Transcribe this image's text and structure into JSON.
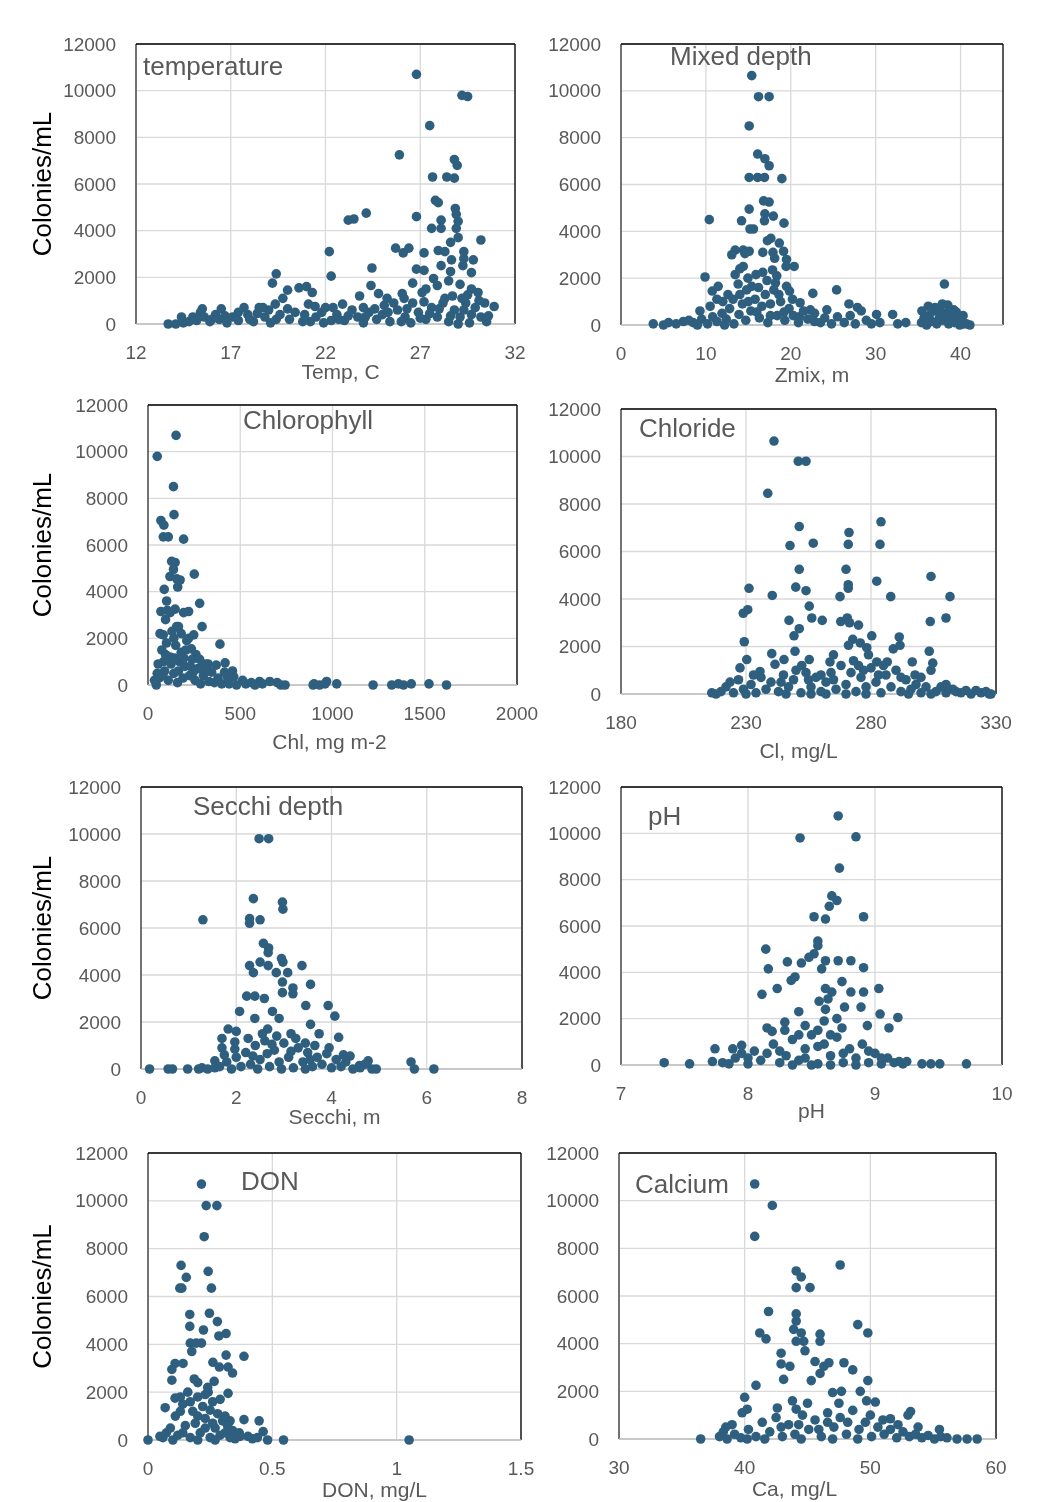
{
  "chart_data": [
    {
      "type": "scatter",
      "title": "temperature",
      "xlabel": "Temp, C",
      "ylabel": "Colonies/mL",
      "color": "#2f5f7f",
      "marker": "circle",
      "xlim": [
        12,
        32
      ],
      "xticks": [
        12,
        17,
        22,
        27,
        32
      ],
      "ylim": [
        0,
        12000
      ],
      "yticks": [
        0,
        2000,
        4000,
        6000,
        8000,
        10000,
        12000
      ],
      "grid": true,
      "x": [
        26.8,
        29.2,
        29.5,
        27.5,
        25.9,
        28.8,
        28.95,
        27.65,
        28.4,
        28.8,
        27.8,
        27.95,
        28.85,
        28.9,
        29.0,
        28.9,
        26.8,
        28.1,
        27.6,
        28.1,
        29.0,
        30.2,
        23.2,
        23.5,
        24.15,
        22.2,
        22.3,
        25.7,
        26.1,
        26.4,
        27.2,
        27.95,
        28.3,
        28.6,
        29.3,
        29.3,
        29.8,
        29.25,
        28.65,
        28.1,
        26.8,
        27.2,
        26.6,
        27.7,
        28.6,
        28.5,
        27.9,
        29.7,
        29.1,
        24.45,
        24.4,
        23.8,
        24.8,
        19.4,
        19.2,
        20.0,
        20.6,
        21.0,
        21.3,
        19.75,
        19.35,
        27.1,
        27.3,
        26.05,
        26.15,
        25.25,
        30.9,
        30.6,
        30.05,
        29.7,
        21.1,
        21.45,
        22.0,
        22.4,
        22.9,
        17.7,
        18.5,
        18.7,
        15.5,
        16.5,
        13.7,
        14.1,
        14.5,
        14.8,
        15.2,
        15.4,
        15.6,
        15.9,
        16.2,
        16.4,
        16.8,
        17.1,
        17.4,
        17.9,
        18.2,
        18.8,
        19.1,
        19.6,
        20.1,
        20.4,
        20.8,
        21.5,
        21.9,
        22.6,
        23.0,
        23.4,
        23.7,
        24.0,
        24.3,
        24.7,
        25.0,
        25.4,
        25.8,
        26.2,
        26.5,
        26.9,
        27.3,
        27.6,
        27.9,
        28.2,
        28.5,
        28.8,
        29.1,
        29.4,
        29.6,
        29.9,
        30.2,
        30.5,
        30.4,
        29.2,
        28.3,
        26.6,
        25.6,
        24.0,
        25.1,
        22.7,
        21.2,
        20.9,
        18.0,
        16.0,
        15.0,
        17.4,
        19.0,
        20.0,
        21.8,
        23.2,
        24.6,
        25.3,
        26.0,
        26.3,
        27.0,
        27.5,
        28.0,
        28.6,
        29.0,
        29.3,
        29.7,
        30.1,
        27.2,
        28.7,
        29.5,
        14.4,
        16.7,
        18.4,
        19.4,
        22.3,
        24.1
      ],
      "values": [
        10700,
        9800,
        9750,
        8500,
        7250,
        7050,
        6800,
        6300,
        6300,
        6250,
        5300,
        5200,
        4950,
        4700,
        4400,
        4100,
        4600,
        4450,
        4100,
        4100,
        3700,
        3600,
        4450,
        4500,
        4750,
        3100,
        2050,
        3250,
        3050,
        3250,
        3050,
        3150,
        3100,
        3500,
        3100,
        2800,
        2750,
        2500,
        2750,
        2500,
        2350,
        2300,
        1750,
        1950,
        2250,
        1850,
        1650,
        2200,
        1700,
        2400,
        1650,
        1200,
        1300,
        2150,
        1750,
        1450,
        1550,
        1600,
        1350,
        1100,
        850,
        1350,
        1500,
        1300,
        1100,
        1100,
        750,
        350,
        1350,
        1500,
        850,
        750,
        700,
        700,
        850,
        700,
        700,
        700,
        650,
        650,
        0,
        0,
        50,
        100,
        150,
        500,
        300,
        100,
        400,
        200,
        50,
        300,
        150,
        400,
        100,
        300,
        50,
        400,
        200,
        500,
        100,
        300,
        50,
        400,
        150,
        600,
        300,
        50,
        500,
        200,
        400,
        100,
        600,
        300,
        50,
        500,
        200,
        700,
        300,
        900,
        100,
        600,
        300,
        900,
        50,
        700,
        300,
        100,
        900,
        1100,
        1100,
        900,
        900,
        700,
        800,
        200,
        100,
        400,
        200,
        200,
        300,
        500,
        600,
        650,
        500,
        350,
        650,
        500,
        100,
        650,
        250,
        450,
        650,
        350,
        0,
        600,
        400,
        1000,
        950,
        1200,
        1250,
        300,
        350,
        450,
        200,
        150,
        300
      ]
    },
    {
      "type": "scatter",
      "title": "Mixed depth",
      "xlabel": "Zmix, m",
      "color": "#2f5f7f",
      "marker": "circle",
      "xlim": [
        0,
        45
      ],
      "xticks": [
        0,
        10,
        20,
        30,
        40
      ],
      "ylim": [
        0,
        12000
      ],
      "yticks": [
        0,
        2000,
        4000,
        6000,
        8000,
        10000,
        12000
      ],
      "grid": true,
      "x": [
        15.4,
        16.2,
        17.45,
        15.1,
        16.1,
        16.95,
        17.45,
        15.1,
        16.1,
        16.9,
        18.95,
        16.8,
        17.45,
        15.1,
        10.4,
        14.2,
        16.95,
        16.9,
        17.95,
        19.2,
        15.2,
        15.6,
        17.25,
        17.65,
        18.65,
        13.05,
        13.45,
        14.4,
        14.6,
        15.1,
        16.7,
        17.9,
        19.15,
        18.1,
        19.5,
        19.45,
        20.4,
        13.45,
        14.0,
        14.4,
        9.9,
        10.75,
        11.45,
        14.95,
        15.9,
        16.7,
        17.85,
        18.35,
        13.8,
        15.4,
        19.5,
        19.85,
        22.6,
        25.4,
        26.85,
        24.25,
        27.85,
        38.1,
        37.85,
        32.0,
        30.1,
        35.45,
        37.0,
        39.2,
        39.5,
        32.6,
        33.55,
        41.1,
        40.35,
        3.8,
        5.0,
        5.6,
        7.35,
        21.1,
        22.3,
        12.0,
        13.2,
        8.5,
        9.5,
        10.2,
        10.8,
        11.3,
        11.9,
        12.4,
        12.8,
        13.3,
        13.9,
        14.3,
        14.7,
        15.3,
        15.8,
        16.3,
        16.6,
        17.0,
        17.3,
        17.6,
        18.0,
        18.4,
        18.8,
        19.3,
        19.8,
        20.3,
        20.9,
        21.5,
        22.0,
        22.8,
        23.5,
        24.0,
        24.8,
        25.5,
        26.3,
        27.0,
        27.6,
        28.3,
        28.9,
        29.5,
        30.5,
        35.4,
        35.7,
        36.0,
        36.3,
        36.6,
        36.9,
        37.2,
        37.5,
        37.9,
        38.3,
        38.6,
        38.9,
        39.3,
        39.8,
        39.9,
        40.7,
        6.5,
        8.0,
        9.0,
        17.2,
        18.2,
        16.2,
        12.6,
        14.0,
        14.8,
        15.0,
        16.0,
        17.6,
        18.6,
        19.2,
        20.2,
        21.0,
        22.8,
        12.2,
        9.3,
        10.5,
        11.3,
        36.2,
        37.6,
        38.5,
        40.3
      ],
      "values": [
        10650,
        9750,
        9750,
        8500,
        7300,
        7100,
        6800,
        6300,
        6300,
        6300,
        6250,
        5300,
        5250,
        4950,
        4500,
        4450,
        4750,
        4450,
        4650,
        4350,
        4100,
        4100,
        3600,
        3700,
        3500,
        3000,
        3200,
        3200,
        3050,
        3150,
        3100,
        3100,
        3150,
        2850,
        2800,
        2500,
        2500,
        2150,
        2400,
        2500,
        2050,
        1450,
        1650,
        2000,
        2150,
        2250,
        2350,
        2100,
        1750,
        1650,
        1650,
        1450,
        1350,
        1500,
        900,
        650,
        750,
        1750,
        900,
        450,
        450,
        600,
        750,
        650,
        550,
        50,
        100,
        0,
        50,
        50,
        0,
        100,
        150,
        950,
        650,
        1000,
        1100,
        100,
        250,
        50,
        350,
        150,
        500,
        250,
        700,
        50,
        450,
        900,
        200,
        600,
        1100,
        300,
        800,
        1300,
        100,
        900,
        1500,
        400,
        1000,
        200,
        700,
        400,
        100,
        600,
        250,
        500,
        100,
        300,
        50,
        350,
        100,
        400,
        50,
        600,
        200,
        50,
        100,
        100,
        300,
        0,
        400,
        150,
        600,
        50,
        300,
        200,
        500,
        50,
        300,
        100,
        250,
        0,
        50,
        50,
        200,
        0,
        1900,
        1800,
        1600,
        1300,
        1300,
        1500,
        1000,
        550,
        400,
        1300,
        550,
        1100,
        350,
        150,
        0,
        600,
        800,
        1100,
        800,
        600,
        850,
        400
      ]
    },
    {
      "type": "scatter",
      "title": "Chlorophyll",
      "xlabel": "Chl, mg m-2",
      "ylabel": "Colonies/mL",
      "color": "#2f5f7f",
      "marker": "circle",
      "xlim": [
        0,
        2000
      ],
      "xticks": [
        0,
        500,
        1000,
        1500,
        2000
      ],
      "ylim": [
        0,
        12000
      ],
      "yticks": [
        0,
        2000,
        4000,
        6000,
        8000,
        10000,
        12000
      ],
      "grid": true,
      "x": [
        152,
        50,
        138,
        141,
        70,
        86,
        83,
        110,
        193,
        128,
        147,
        138,
        119,
        156,
        174,
        161,
        251,
        88,
        101,
        70,
        105,
        147,
        193,
        220,
        280,
        95,
        165,
        293,
        83,
        248,
        220,
        235,
        390,
        418,
        326,
        55,
        431,
        513,
        605,
        660,
        743,
        895,
        968,
        1023,
        1220,
        1321,
        1357,
        1385,
        1427,
        1523,
        1618,
        45,
        60,
        75,
        90,
        100,
        110,
        120,
        130,
        140,
        150,
        160,
        170,
        180,
        190,
        200,
        210,
        225,
        240,
        255,
        270,
        285,
        300,
        315,
        330,
        345,
        360,
        380,
        400,
        415,
        440,
        458,
        480,
        530,
        560,
        580,
        620,
        700,
        720,
        900,
        930,
        960,
        65,
        95,
        125,
        155,
        180,
        205,
        230,
        120,
        140,
        80,
        300,
        260,
        85,
        50,
        165,
        145,
        195,
        245,
        280,
        320,
        370,
        465,
        35
      ],
      "values": [
        10700,
        9800,
        8500,
        7300,
        7050,
        6850,
        6350,
        6350,
        6250,
        5300,
        5250,
        4950,
        4650,
        4550,
        4500,
        4200,
        4750,
        4100,
        3600,
        3150,
        3200,
        3250,
        3100,
        3150,
        3500,
        2800,
        2500,
        2500,
        2150,
        2150,
        2000,
        1550,
        1750,
        950,
        900,
        900,
        350,
        200,
        150,
        150,
        0,
        0,
        150,
        50,
        0,
        0,
        50,
        0,
        50,
        50,
        0,
        0,
        300,
        1500,
        600,
        1800,
        200,
        1200,
        2300,
        500,
        1700,
        100,
        1000,
        1400,
        300,
        800,
        1900,
        400,
        1100,
        200,
        700,
        50,
        400,
        900,
        150,
        550,
        100,
        300,
        50,
        550,
        50,
        600,
        0,
        50,
        100,
        0,
        50,
        100,
        0,
        50,
        0,
        50,
        2200,
        1300,
        900,
        2500,
        2200,
        1500,
        800,
        3100,
        2000,
        400,
        800,
        1300,
        1000,
        500,
        600,
        1150,
        1150,
        550,
        1100,
        600,
        850,
        350,
        200
      ]
    },
    {
      "type": "scatter",
      "title": "Chloride",
      "xlabel": "Cl, mg/L",
      "color": "#2f5f7f",
      "marker": "circle",
      "xlim": [
        180,
        330
      ],
      "xticks": [
        180,
        230,
        280,
        330
      ],
      "ylim": [
        0,
        12000
      ],
      "yticks": [
        0,
        2000,
        4000,
        6000,
        8000,
        10000,
        12000
      ],
      "grid": true,
      "x": [
        241.2,
        250.9,
        254,
        238.7,
        251.3,
        247.6,
        256.9,
        251.3,
        249.9,
        254,
        231.2,
        240.5,
        228.9,
        230.7,
        255.3,
        247.2,
        256.3,
        260.5,
        251.3,
        249.2,
        229.3,
        249.6,
        240.3,
        245.2,
        255.3,
        252.3,
        230.3,
        227.6,
        235.6,
        241.6,
        271.2,
        270.9,
        284,
        283.6,
        270,
        270.9,
        270.9,
        267.6,
        282.3,
        287.9,
        304,
        311.6,
        310,
        303.7,
        267.9,
        270.5,
        271.4,
        275,
        280.3,
        272.7,
        275.7,
        271,
        278.3,
        279,
        288.9,
        291.3,
        291.6,
        303.3,
        304.7,
        304,
        296.5,
        263.6,
        265,
        282.3,
        286.5,
        297.6,
        312.7,
        322,
        327.3,
        216.3,
        223.6,
        218,
        220,
        222,
        225,
        227,
        229,
        232,
        234,
        236,
        238,
        240,
        243,
        245,
        247,
        249,
        252,
        254,
        256,
        258,
        260,
        262,
        264,
        266,
        268,
        270,
        272,
        274,
        276,
        278,
        280,
        282,
        284,
        286,
        288,
        290,
        292,
        294,
        296,
        298,
        300,
        302,
        306,
        308,
        310,
        314,
        316,
        318,
        320,
        324,
        326,
        328,
        260,
        273,
        277,
        285,
        250,
        230,
        246,
        262,
        270,
        278,
        295,
        304,
        256,
        265,
        283,
        292,
        275,
        244,
        233,
        300,
        310,
        255
      ],
      "values": [
        10650,
        9800,
        9800,
        8450,
        7050,
        6250,
        6350,
        5250,
        4500,
        4350,
        4450,
        4150,
        3400,
        3550,
        3700,
        3100,
        3200,
        3100,
        2750,
        2450,
        2200,
        1800,
        1700,
        1450,
        1450,
        1200,
        1450,
        1100,
        950,
        1250,
        6800,
        6300,
        7250,
        6300,
        5250,
        4600,
        4450,
        4100,
        4750,
        4100,
        4950,
        4100,
        3200,
        3050,
        3050,
        3200,
        3000,
        2900,
        2450,
        2300,
        2150,
        2050,
        1950,
        1650,
        1900,
        2400,
        2050,
        1800,
        1300,
        1000,
        1350,
        1350,
        1650,
        1350,
        1350,
        800,
        200,
        150,
        0,
        50,
        500,
        0,
        100,
        300,
        50,
        600,
        200,
        400,
        50,
        700,
        200,
        500,
        100,
        800,
        300,
        600,
        50,
        900,
        300,
        700,
        100,
        500,
        900,
        200,
        1200,
        400,
        900,
        100,
        700,
        300,
        1100,
        500,
        50,
        800,
        300,
        1000,
        100,
        600,
        200,
        400,
        50,
        300,
        100,
        300,
        50,
        100,
        50,
        150,
        0,
        50,
        100,
        0,
        800,
        1400,
        1000,
        1200,
        1000,
        0,
        0,
        0,
        0,
        0,
        0,
        0,
        0,
        600,
        800,
        700,
        1200,
        500,
        800,
        700,
        400,
        600
      ]
    },
    {
      "type": "scatter",
      "title": "Secchi depth",
      "xlabel": "Secchi, m",
      "ylabel": "Colonies/mL",
      "color": "#2f5f7f",
      "marker": "circle",
      "xlim": [
        0,
        8
      ],
      "xticks": [
        0,
        2,
        4,
        6,
        8
      ],
      "ylim": [
        0,
        12000
      ],
      "yticks": [
        0,
        2000,
        4000,
        6000,
        8000,
        10000,
        12000
      ],
      "grid": true,
      "x": [
        2.48,
        2.68,
        2.36,
        2.97,
        2.98,
        1.3,
        2.28,
        2.28,
        2.5,
        2.57,
        2.68,
        2.67,
        2.95,
        2.98,
        2.28,
        2.5,
        2.67,
        2.36,
        2.84,
        3.08,
        3.38,
        2.97,
        3.19,
        3.19,
        2.97,
        3.56,
        2.22,
        2.39,
        2.59,
        3.46,
        3.93,
        4.07,
        2.07,
        2.76,
        2.9,
        3.56,
        3.74,
        4.15,
        1.83,
        2.0,
        1.7,
        1.7,
        1.97,
        1.97,
        2.39,
        2.66,
        3.15,
        5.67,
        5.74,
        6.15,
        0.18,
        0.57,
        0.66,
        0.98,
        1.21,
        1.28,
        4.77,
        4.94,
        4.59,
        4.39,
        1.4,
        1.55,
        1.65,
        1.8,
        1.9,
        2.0,
        2.1,
        2.2,
        2.3,
        2.4,
        2.5,
        2.6,
        2.7,
        2.8,
        2.9,
        3.0,
        3.1,
        3.2,
        3.3,
        3.4,
        3.5,
        3.6,
        3.7,
        3.8,
        3.9,
        4.0,
        4.1,
        4.2,
        4.3,
        4.45,
        4.6,
        4.7,
        4.85,
        2.55,
        2.85,
        3.25,
        3.65,
        2.25,
        2.45,
        2.95,
        3.45,
        2.65,
        3.15,
        3.55,
        2.35,
        2.75,
        3.45,
        3.95,
        4.25,
        1.75,
        1.55
      ],
      "values": [
        9800,
        9800,
        7250,
        7100,
        6800,
        6350,
        6400,
        6200,
        6350,
        5350,
        5150,
        4950,
        4700,
        4550,
        4400,
        4550,
        4400,
        4100,
        4100,
        4100,
        4400,
        3700,
        3450,
        3200,
        3250,
        3600,
        3100,
        3100,
        3000,
        2700,
        2700,
        2250,
        2450,
        2450,
        2150,
        1900,
        1500,
        1350,
        1700,
        1600,
        1300,
        900,
        1150,
        850,
        2150,
        1700,
        1500,
        300,
        0,
        0,
        0,
        0,
        0,
        0,
        0,
        50,
        350,
        0,
        150,
        550,
        0,
        50,
        100,
        300,
        0,
        500,
        100,
        700,
        200,
        1000,
        400,
        1200,
        100,
        800,
        300,
        1100,
        500,
        50,
        900,
        300,
        700,
        100,
        500,
        200,
        650,
        50,
        400,
        100,
        300,
        0,
        50,
        200,
        0,
        1500,
        1400,
        1300,
        1000,
        1300,
        0,
        0,
        0,
        650,
        750,
        400,
        550,
        1050,
        1100,
        900,
        600,
        600,
        350
      ]
    },
    {
      "type": "scatter",
      "title": "pH",
      "xlabel": "pH",
      "color": "#2f5f7f",
      "marker": "circle",
      "xlim": [
        7,
        10
      ],
      "xticks": [
        7,
        8,
        9,
        10
      ],
      "ylim": [
        0,
        12000
      ],
      "yticks": [
        0,
        2000,
        4000,
        6000,
        8000,
        10000,
        12000
      ],
      "grid": true,
      "x": [
        8.71,
        8.41,
        8.85,
        8.72,
        8.66,
        8.7,
        8.64,
        8.52,
        8.61,
        8.91,
        8.55,
        8.55,
        8.14,
        8.52,
        8.48,
        8.42,
        8.31,
        8.16,
        8.61,
        8.71,
        8.81,
        8.58,
        8.91,
        8.34,
        8.37,
        8.23,
        8.11,
        8.61,
        8.66,
        8.74,
        8.81,
        8.91,
        9.03,
        8.56,
        8.63,
        8.89,
        8.76,
        9.04,
        9.18,
        9.11,
        8.94,
        8.4,
        8.61,
        8.29,
        8.15,
        8.19,
        8.29,
        8.74,
        7.74,
        7.88,
        7.95,
        7.34,
        7.54,
        9.19,
        9.37,
        9.44,
        9.51,
        9.72,
        7.72,
        7.8,
        7.9,
        8.0,
        8.05,
        8.1,
        8.2,
        8.25,
        8.3,
        8.35,
        8.4,
        8.45,
        8.5,
        8.55,
        8.6,
        8.65,
        8.7,
        8.75,
        8.8,
        8.85,
        8.9,
        8.95,
        9.0,
        9.05,
        9.1,
        9.15,
        9.22,
        9.25,
        8.45,
        8.6,
        8.7,
        8.55,
        8.0,
        7.85,
        8.15,
        8.35,
        8.45,
        8.5,
        8.55,
        8.65,
        8.75,
        8.85,
        8.65,
        8.4,
        8.25,
        9.05,
        8.95,
        7.95
      ],
      "values": [
        10750,
        9800,
        9850,
        8500,
        7300,
        7100,
        6850,
        6400,
        6300,
        6400,
        5350,
        5150,
        5000,
        4800,
        4650,
        4400,
        4450,
        4150,
        4500,
        4500,
        4500,
        4150,
        4200,
        3650,
        3800,
        3300,
        3050,
        3300,
        3150,
        3600,
        3150,
        3150,
        3300,
        2750,
        2850,
        2500,
        2500,
        2200,
        2050,
        1600,
        1700,
        2300,
        2400,
        1850,
        1600,
        1450,
        1500,
        1600,
        700,
        700,
        850,
        100,
        50,
        150,
        50,
        50,
        50,
        50,
        150,
        100,
        300,
        50,
        600,
        200,
        900,
        100,
        400,
        1100,
        200,
        700,
        1300,
        50,
        900,
        400,
        1200,
        100,
        700,
        300,
        900,
        100,
        500,
        50,
        300,
        100,
        50,
        150,
        1700,
        1900,
        2000,
        1500,
        300,
        50,
        500,
        0,
        300,
        0,
        800,
        0,
        500,
        0,
        1300,
        1300,
        600,
        300,
        600,
        500
      ]
    },
    {
      "type": "scatter",
      "title": "DON",
      "xlabel": "DON, mg/L",
      "ylabel": "Colonies/mL",
      "color": "#2f5f7f",
      "marker": "circle",
      "xlim": [
        0,
        1.5
      ],
      "xticks": [
        0,
        0.5,
        1,
        1.5
      ],
      "ylim": [
        0,
        12000
      ],
      "yticks": [
        0,
        2000,
        4000,
        6000,
        8000,
        10000,
        12000
      ],
      "grid": true,
      "x": [
        0.215,
        0.234,
        0.277,
        0.226,
        0.133,
        0.154,
        0.128,
        0.136,
        0.242,
        0.255,
        0.168,
        0.247,
        0.168,
        0.279,
        0.314,
        0.285,
        0.223,
        0.17,
        0.194,
        0.215,
        0.176,
        0.314,
        0.386,
        0.109,
        0.141,
        0.096,
        0.261,
        0.287,
        0.322,
        0.34,
        0.186,
        0.096,
        0.322,
        0.069,
        0.266,
        0.109,
        0.242,
        0.386,
        0.447,
        0.463,
        0,
        0.048,
        0.074,
        0.545,
        0.481,
        1.05,
        0.402,
        0.367,
        0.06,
        0.09,
        0.11,
        0.12,
        0.14,
        0.15,
        0.16,
        0.17,
        0.18,
        0.19,
        0.2,
        0.21,
        0.22,
        0.23,
        0.24,
        0.25,
        0.26,
        0.27,
        0.28,
        0.29,
        0.3,
        0.31,
        0.32,
        0.33,
        0.34,
        0.35,
        0.37,
        0.42,
        0.44,
        0.2,
        0.13,
        0.29,
        0.23,
        0.1,
        0.14,
        0.2,
        0.27,
        0.23,
        0.2,
        0.25,
        0.13,
        0.31,
        0.17,
        0.26,
        0.33
      ],
      "values": [
        10700,
        9800,
        9800,
        8500,
        7300,
        6800,
        6350,
        6350,
        7050,
        6350,
        5250,
        5300,
        4750,
        4950,
        4450,
        4350,
        4600,
        4050,
        4050,
        4050,
        3700,
        3550,
        3500,
        3200,
        3200,
        2950,
        3250,
        3050,
        3050,
        2800,
        2550,
        2500,
        1950,
        1350,
        2450,
        1750,
        2000,
        850,
        800,
        350,
        0,
        150,
        300,
        0,
        0,
        0,
        150,
        300,
        100,
        500,
        1000,
        200,
        1500,
        600,
        2000,
        100,
        1200,
        700,
        1800,
        300,
        1400,
        900,
        2200,
        100,
        1600,
        500,
        1100,
        200,
        800,
        300,
        600,
        100,
        400,
        50,
        150,
        50,
        100,
        2400,
        1800,
        1700,
        1900,
        0,
        300,
        0,
        0,
        500,
        1000,
        1250,
        1200,
        1000,
        1600,
        700,
        800
      ]
    },
    {
      "type": "scatter",
      "title": "Calcium",
      "xlabel": "Ca, mg/L",
      "color": "#2f5f7f",
      "marker": "circle",
      "xlim": [
        30,
        60
      ],
      "xticks": [
        30,
        40,
        50,
        60
      ],
      "ylim": [
        0,
        12000
      ],
      "yticks": [
        0,
        2000,
        4000,
        6000,
        8000,
        10000,
        12000
      ],
      "grid": true,
      "x": [
        40.8,
        42.2,
        40.8,
        44.1,
        47.6,
        44.1,
        45.2,
        44.5,
        41.9,
        44.1,
        44.1,
        41.2,
        41.7,
        43.9,
        44.5,
        44.1,
        44.7,
        44.8,
        46.0,
        46.0,
        49.0,
        49.8,
        42.9,
        42.9,
        43.6,
        45.6,
        46.3,
        46.7,
        47.9,
        48.6,
        43.1,
        46.0,
        45.3,
        40.9,
        49.8,
        40.0,
        40.2,
        39.8,
        47.0,
        47.7,
        49.2,
        43.8,
        44.1,
        49.7,
        50.4,
        53.2,
        53.0,
        51.6,
        36.5,
        56.9,
        57.7,
        38.5,
        38.3,
        38.0,
        38.6,
        39.2,
        39.7,
        40.3,
        40.9,
        41.4,
        42.0,
        42.5,
        43.0,
        43.5,
        44.0,
        44.6,
        45.1,
        45.6,
        46.1,
        46.6,
        47.1,
        47.6,
        48.1,
        48.6,
        49.1,
        49.6,
        50.1,
        50.6,
        51.1,
        51.6,
        52.1,
        52.6,
        53.1,
        53.6,
        54.1,
        54.6,
        55.1,
        55.6,
        56.1,
        58.5,
        45.0,
        47.5,
        42.6,
        41.6,
        42.9,
        44.3,
        44.5,
        45.9,
        47.0,
        48.2,
        49.0,
        50.0,
        51.0,
        52.2,
        53.8,
        46.6,
        40.2,
        39.0,
        55.5
      ],
      "values": [
        10700,
        9800,
        8500,
        7050,
        7300,
        6350,
        6350,
        6800,
        5350,
        5250,
        4950,
        4450,
        4200,
        4600,
        4450,
        4100,
        4100,
        3700,
        4400,
        4100,
        4800,
        4450,
        3600,
        3150,
        3050,
        3250,
        3050,
        3200,
        3200,
        2900,
        2500,
        2750,
        2450,
        2250,
        2450,
        1750,
        1250,
        1100,
        1950,
        2000,
        2000,
        1600,
        1250,
        1600,
        1550,
        1150,
        1000,
        850,
        0,
        0,
        0,
        500,
        300,
        100,
        0,
        200,
        50,
        400,
        100,
        700,
        300,
        900,
        100,
        600,
        200,
        1000,
        400,
        800,
        100,
        1100,
        500,
        900,
        200,
        1200,
        400,
        700,
        100,
        500,
        200,
        400,
        50,
        300,
        100,
        200,
        50,
        150,
        0,
        100,
        50,
        0,
        1500,
        1500,
        1300,
        0,
        500,
        600,
        0,
        400,
        0,
        700,
        0,
        1000,
        800,
        600,
        500,
        700,
        0,
        600,
        400
      ]
    }
  ]
}
